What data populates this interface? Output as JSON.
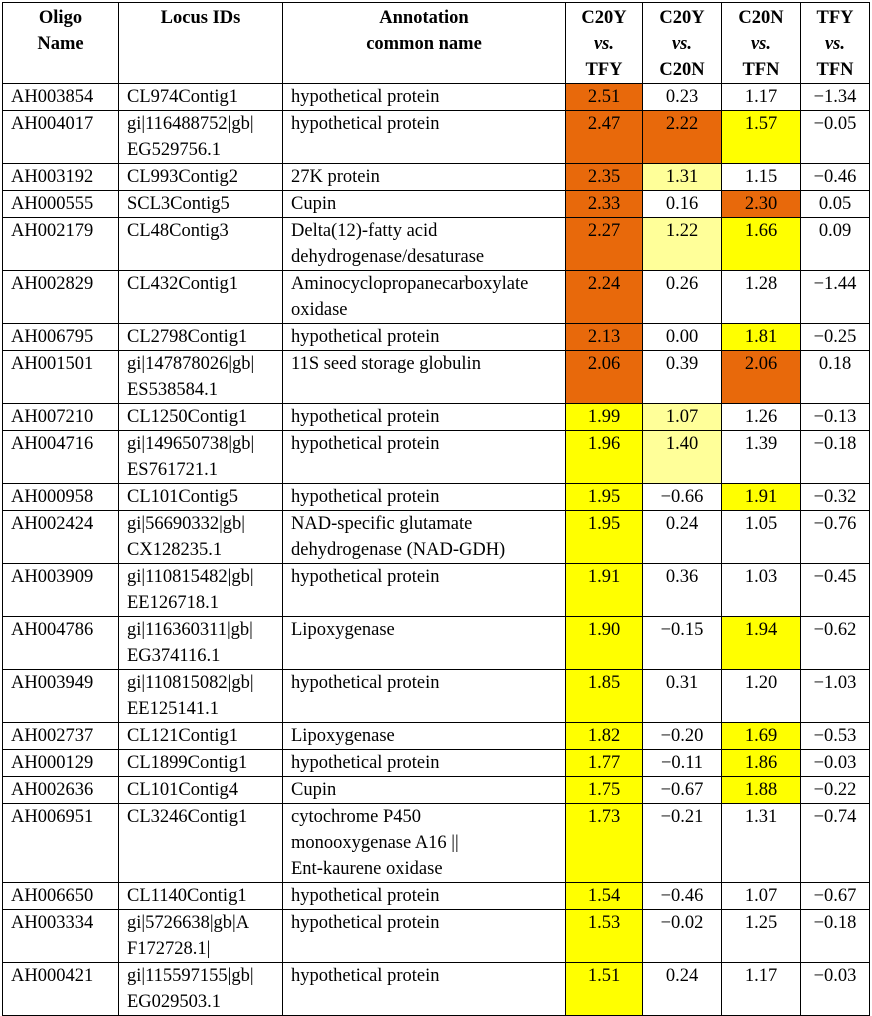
{
  "headers": {
    "oligo": [
      "Oligo",
      "Name"
    ],
    "locus": [
      "Locus IDs"
    ],
    "annotation": [
      "Annotation",
      "common name"
    ],
    "c1": [
      "C20Y",
      "vs.",
      "TFY"
    ],
    "c2": [
      "C20Y",
      "vs.",
      "C20N"
    ],
    "c3": [
      "C20N",
      "vs.",
      "TFN"
    ],
    "c4": [
      "TFY",
      "vs.",
      "TFN"
    ]
  },
  "colors": {
    "orange": "#e8690b",
    "yellow": "#ffff00",
    "pale_yellow": "#ffff99"
  },
  "rows": [
    {
      "oligo": "AH003854",
      "locus": [
        "CL974Contig1"
      ],
      "annot": [
        "hypothetical protein"
      ],
      "v": [
        "2.51",
        "0.23",
        "1.17",
        "−1.34"
      ],
      "c": [
        "orange",
        "",
        "",
        ""
      ]
    },
    {
      "oligo": "AH004017",
      "locus": [
        "gi|116488752|gb|",
        "EG529756.1"
      ],
      "annot": [
        "hypothetical protein"
      ],
      "v": [
        "2.47",
        "2.22",
        "1.57",
        "−0.05"
      ],
      "c": [
        "orange",
        "orange",
        "yellow",
        ""
      ]
    },
    {
      "oligo": "AH003192",
      "locus": [
        "CL993Contig2"
      ],
      "annot": [
        "27K protein"
      ],
      "v": [
        "2.35",
        "1.31",
        "1.15",
        "−0.46"
      ],
      "c": [
        "orange",
        "pale",
        "",
        ""
      ]
    },
    {
      "oligo": "AH000555",
      "locus": [
        "SCL3Contig5"
      ],
      "annot": [
        "Cupin"
      ],
      "v": [
        "2.33",
        "0.16",
        "2.30",
        "0.05"
      ],
      "c": [
        "orange",
        "",
        "orange",
        ""
      ]
    },
    {
      "oligo": "AH002179",
      "locus": [
        "CL48Contig3"
      ],
      "annot": [
        "Delta(12)-fatty acid",
        "dehydrogenase/desaturase"
      ],
      "v": [
        "2.27",
        "1.22",
        "1.66",
        "0.09"
      ],
      "c": [
        "orange",
        "pale",
        "yellow",
        ""
      ]
    },
    {
      "oligo": "AH002829",
      "locus": [
        "CL432Contig1"
      ],
      "annot": [
        "Aminocyclopropanecarboxylate",
        "oxidase"
      ],
      "v": [
        "2.24",
        "0.26",
        "1.28",
        "−1.44"
      ],
      "c": [
        "orange",
        "",
        "",
        ""
      ]
    },
    {
      "oligo": "AH006795",
      "locus": [
        "CL2798Contig1"
      ],
      "annot": [
        "hypothetical protein"
      ],
      "v": [
        "2.13",
        "0.00",
        "1.81",
        "−0.25"
      ],
      "c": [
        "orange",
        "",
        "yellow",
        ""
      ]
    },
    {
      "oligo": "AH001501",
      "locus": [
        "gi|147878026|gb|",
        "ES538584.1"
      ],
      "annot": [
        "11S seed storage globulin"
      ],
      "v": [
        "2.06",
        "0.39",
        "2.06",
        "0.18"
      ],
      "c": [
        "orange",
        "",
        "orange",
        ""
      ]
    },
    {
      "oligo": "AH007210",
      "locus": [
        "CL1250Contig1"
      ],
      "annot": [
        "hypothetical protein"
      ],
      "v": [
        "1.99",
        "1.07",
        "1.26",
        "−0.13"
      ],
      "c": [
        "yellow",
        "pale",
        "",
        ""
      ]
    },
    {
      "oligo": "AH004716",
      "locus": [
        "gi|149650738|gb|",
        "ES761721.1"
      ],
      "annot": [
        "hypothetical protein"
      ],
      "v": [
        "1.96",
        "1.40",
        "1.39",
        "−0.18"
      ],
      "c": [
        "yellow",
        "pale",
        "",
        ""
      ]
    },
    {
      "oligo": "AH000958",
      "locus": [
        "CL101Contig5"
      ],
      "annot": [
        "hypothetical protein"
      ],
      "v": [
        "1.95",
        "−0.66",
        "1.91",
        "−0.32"
      ],
      "c": [
        "yellow",
        "",
        "yellow",
        ""
      ]
    },
    {
      "oligo": "AH002424",
      "locus": [
        "gi|56690332|gb|",
        "CX128235.1"
      ],
      "annot": [
        "NAD-specific glutamate",
        "dehydrogenase (NAD-GDH)"
      ],
      "v": [
        "1.95",
        "0.24",
        "1.05",
        "−0.76"
      ],
      "c": [
        "yellow",
        "",
        "",
        ""
      ]
    },
    {
      "oligo": "AH003909",
      "locus": [
        "gi|110815482|gb|",
        "EE126718.1"
      ],
      "annot": [
        "hypothetical protein"
      ],
      "v": [
        "1.91",
        "0.36",
        "1.03",
        "−0.45"
      ],
      "c": [
        "yellow",
        "",
        "",
        ""
      ]
    },
    {
      "oligo": "AH004786",
      "locus": [
        "gi|116360311|gb|",
        "EG374116.1"
      ],
      "annot": [
        "Lipoxygenase"
      ],
      "v": [
        "1.90",
        "−0.15",
        "1.94",
        "−0.62"
      ],
      "c": [
        "yellow",
        "",
        "yellow",
        ""
      ]
    },
    {
      "oligo": "AH003949",
      "locus": [
        "gi|110815082|gb|",
        "EE125141.1"
      ],
      "annot": [
        "hypothetical protein"
      ],
      "v": [
        "1.85",
        "0.31",
        "1.20",
        "−1.03"
      ],
      "c": [
        "yellow",
        "",
        "",
        ""
      ]
    },
    {
      "oligo": "AH002737",
      "locus": [
        "CL121Contig1"
      ],
      "annot": [
        "Lipoxygenase"
      ],
      "v": [
        "1.82",
        "−0.20",
        "1.69",
        "−0.53"
      ],
      "c": [
        "yellow",
        "",
        "yellow",
        ""
      ]
    },
    {
      "oligo": "AH000129",
      "locus": [
        "CL1899Contig1"
      ],
      "annot": [
        "hypothetical protein"
      ],
      "v": [
        "1.77",
        "−0.11",
        "1.86",
        "−0.03"
      ],
      "c": [
        "yellow",
        "",
        "yellow",
        ""
      ]
    },
    {
      "oligo": "AH002636",
      "locus": [
        "CL101Contig4"
      ],
      "annot": [
        "Cupin"
      ],
      "v": [
        "1.75",
        "−0.67",
        "1.88",
        "−0.22"
      ],
      "c": [
        "yellow",
        "",
        "yellow",
        ""
      ]
    },
    {
      "oligo": "AH006951",
      "locus": [
        "CL3246Contig1"
      ],
      "annot": [
        "cytochrome P450",
        "monooxygenase A16 ||",
        "Ent-kaurene oxidase"
      ],
      "v": [
        "1.73",
        "−0.21",
        "1.31",
        "−0.74"
      ],
      "c": [
        "yellow",
        "",
        "",
        ""
      ]
    },
    {
      "oligo": "AH006650",
      "locus": [
        "CL1140Contig1"
      ],
      "annot": [
        "hypothetical protein"
      ],
      "v": [
        "1.54",
        "−0.46",
        "1.07",
        "−0.67"
      ],
      "c": [
        "yellow",
        "",
        "",
        ""
      ]
    },
    {
      "oligo": "AH003334",
      "locus": [
        "gi|5726638|gb|A",
        "F172728.1|"
      ],
      "annot": [
        "hypothetical protein"
      ],
      "v": [
        "1.53",
        "−0.02",
        "1.25",
        "−0.18"
      ],
      "c": [
        "yellow",
        "",
        "",
        ""
      ]
    },
    {
      "oligo": "AH000421",
      "locus": [
        "gi|115597155|gb|",
        "EG029503.1"
      ],
      "annot": [
        "hypothetical protein"
      ],
      "v": [
        "1.51",
        "0.24",
        "1.17",
        "−0.03"
      ],
      "c": [
        "yellow",
        "",
        "",
        ""
      ]
    }
  ]
}
